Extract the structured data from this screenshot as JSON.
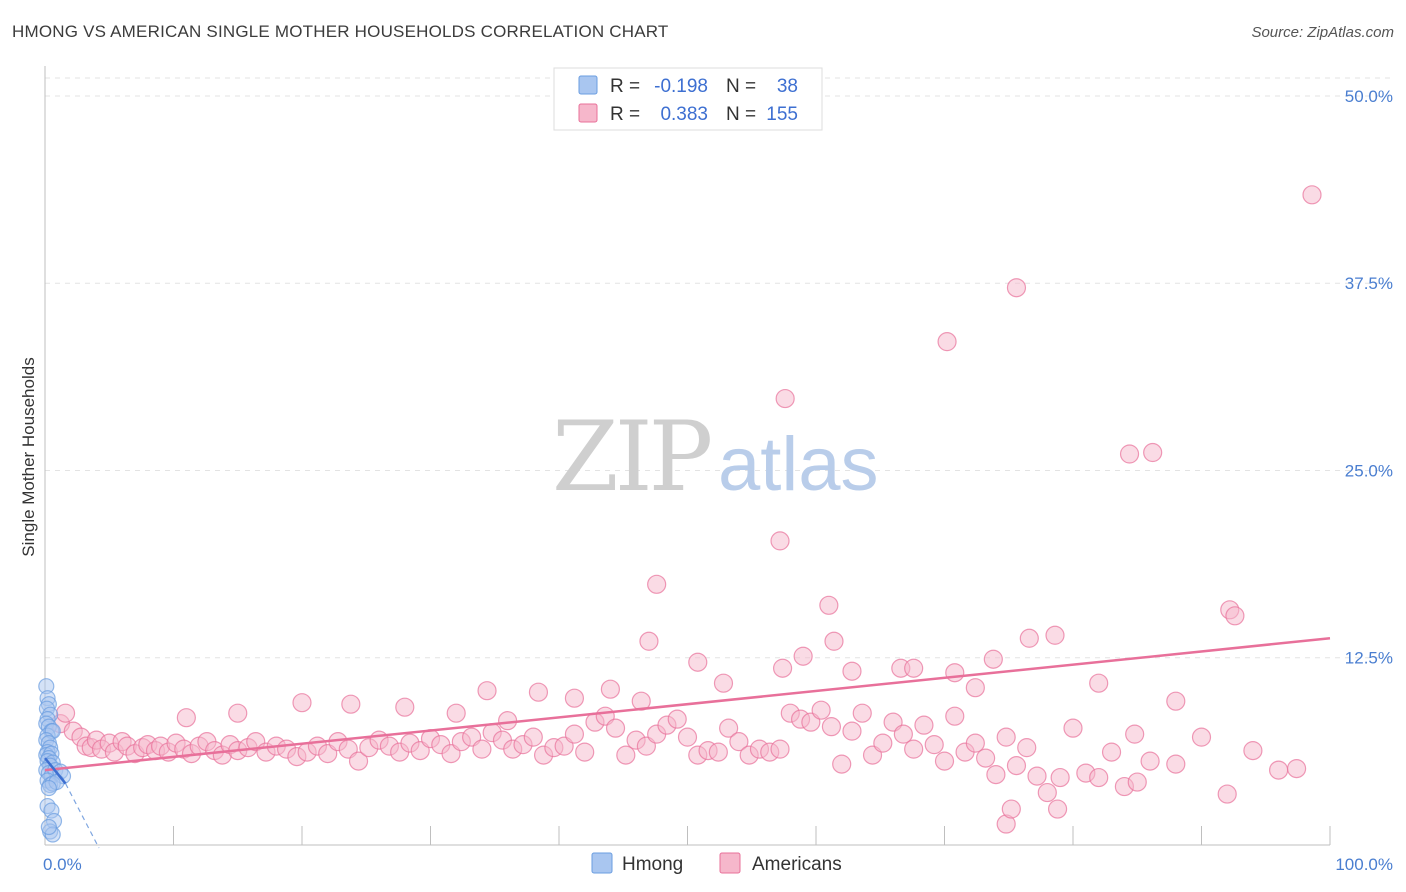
{
  "header": {
    "title": "HMONG VS AMERICAN SINGLE MOTHER HOUSEHOLDS CORRELATION CHART",
    "source": "Source: ZipAtlas.com"
  },
  "watermark": {
    "zip": "ZIP",
    "atlas": "atlas"
  },
  "chart_data": {
    "type": "scatter",
    "title": "HMONG VS AMERICAN SINGLE MOTHER HOUSEHOLDS CORRELATION CHART",
    "xlabel": "",
    "ylabel": "Single Mother Households",
    "xlim": [
      0,
      100
    ],
    "ylim": [
      0,
      52
    ],
    "x_ticks": {
      "min_label": "0.0%",
      "max_label": "100.0%"
    },
    "y_ticks": [
      {
        "value": 12.5,
        "label": "12.5%"
      },
      {
        "value": 25.0,
        "label": "25.0%"
      },
      {
        "value": 37.5,
        "label": "37.5%"
      },
      {
        "value": 50.0,
        "label": "50.0%"
      }
    ],
    "legend": {
      "position": "top-center",
      "rows": [
        {
          "r_label": "R =",
          "r_value": "-0.198",
          "n_label": "N =",
          "n_value": "38",
          "color": "#a9c6f0"
        },
        {
          "r_label": "R =",
          "r_value": "0.383",
          "n_label": "N =",
          "n_value": "155",
          "color": "#f6b7cb"
        }
      ]
    },
    "series": [
      {
        "name": "Hmong",
        "color": "#6a9de0",
        "fill": "#a9c6f0",
        "trend": {
          "x": [
            0.0,
            1.6
          ],
          "y": [
            5.8,
            4.1
          ],
          "dash_to": [
            4.2,
            -0.2
          ]
        },
        "points": [
          [
            0.1,
            10.6
          ],
          [
            0.2,
            9.8
          ],
          [
            0.3,
            9.4
          ],
          [
            0.15,
            9.1
          ],
          [
            0.4,
            8.7
          ],
          [
            0.2,
            8.4
          ],
          [
            0.1,
            8.1
          ],
          [
            0.3,
            7.9
          ],
          [
            0.5,
            7.6
          ],
          [
            0.2,
            7.3
          ],
          [
            0.6,
            7.6
          ],
          [
            0.1,
            7.0
          ],
          [
            0.3,
            6.8
          ],
          [
            0.4,
            6.5
          ],
          [
            0.2,
            6.2
          ],
          [
            0.1,
            6.0
          ],
          [
            0.5,
            6.1
          ],
          [
            0.3,
            5.8
          ],
          [
            0.2,
            5.6
          ],
          [
            0.6,
            5.5
          ],
          [
            0.4,
            5.3
          ],
          [
            0.1,
            5.0
          ],
          [
            0.3,
            4.8
          ],
          [
            0.5,
            4.6
          ],
          [
            0.8,
            5.0
          ],
          [
            1.2,
            4.9
          ],
          [
            1.4,
            4.6
          ],
          [
            0.2,
            4.3
          ],
          [
            0.4,
            4.0
          ],
          [
            0.6,
            4.1
          ],
          [
            0.9,
            4.2
          ],
          [
            0.3,
            3.8
          ],
          [
            0.2,
            2.6
          ],
          [
            0.5,
            2.3
          ],
          [
            0.7,
            1.6
          ],
          [
            0.4,
            0.9
          ],
          [
            0.6,
            0.7
          ],
          [
            0.3,
            1.2
          ]
        ]
      },
      {
        "name": "Americans",
        "color": "#e8709a",
        "fill": "#f6b7cb",
        "trend": {
          "x": [
            0.0,
            100.0
          ],
          "y": [
            5.0,
            13.8
          ]
        },
        "points": [
          [
            1.2,
            8.1
          ],
          [
            1.6,
            8.8
          ],
          [
            2.2,
            7.6
          ],
          [
            2.8,
            7.2
          ],
          [
            3.2,
            6.6
          ],
          [
            3.6,
            6.5
          ],
          [
            4.0,
            7.0
          ],
          [
            4.4,
            6.4
          ],
          [
            5.0,
            6.8
          ],
          [
            5.4,
            6.2
          ],
          [
            6.0,
            6.9
          ],
          [
            6.4,
            6.6
          ],
          [
            7.0,
            6.1
          ],
          [
            7.6,
            6.5
          ],
          [
            8.0,
            6.7
          ],
          [
            8.6,
            6.3
          ],
          [
            9.0,
            6.6
          ],
          [
            9.6,
            6.2
          ],
          [
            10.2,
            6.8
          ],
          [
            10.8,
            6.4
          ],
          [
            11.4,
            6.1
          ],
          [
            12.0,
            6.6
          ],
          [
            12.6,
            6.9
          ],
          [
            13.2,
            6.3
          ],
          [
            13.8,
            6.0
          ],
          [
            14.4,
            6.7
          ],
          [
            15.0,
            6.3
          ],
          [
            15.8,
            6.5
          ],
          [
            16.4,
            6.9
          ],
          [
            17.2,
            6.2
          ],
          [
            18.0,
            6.6
          ],
          [
            18.8,
            6.4
          ],
          [
            19.6,
            5.9
          ],
          [
            20.4,
            6.2
          ],
          [
            21.2,
            6.6
          ],
          [
            22.0,
            6.1
          ],
          [
            22.8,
            6.9
          ],
          [
            23.6,
            6.4
          ],
          [
            24.4,
            5.6
          ],
          [
            25.2,
            6.5
          ],
          [
            26.0,
            7.0
          ],
          [
            26.8,
            6.6
          ],
          [
            27.6,
            6.2
          ],
          [
            28.4,
            6.8
          ],
          [
            29.2,
            6.3
          ],
          [
            30.0,
            7.1
          ],
          [
            30.8,
            6.7
          ],
          [
            31.6,
            6.1
          ],
          [
            32.4,
            6.9
          ],
          [
            33.2,
            7.2
          ],
          [
            34.0,
            6.4
          ],
          [
            34.8,
            7.5
          ],
          [
            35.6,
            7.0
          ],
          [
            36.4,
            6.4
          ],
          [
            37.2,
            6.7
          ],
          [
            38.0,
            7.2
          ],
          [
            38.8,
            6.0
          ],
          [
            39.6,
            6.5
          ],
          [
            40.4,
            6.6
          ],
          [
            41.2,
            7.4
          ],
          [
            42.0,
            6.2
          ],
          [
            42.8,
            8.2
          ],
          [
            43.6,
            8.6
          ],
          [
            44.4,
            7.8
          ],
          [
            45.2,
            6.0
          ],
          [
            46.0,
            7.0
          ],
          [
            46.8,
            6.6
          ],
          [
            47.6,
            7.4
          ],
          [
            48.4,
            8.0
          ],
          [
            49.2,
            8.4
          ],
          [
            50.0,
            7.2
          ],
          [
            50.8,
            6.0
          ],
          [
            51.6,
            6.3
          ],
          [
            52.4,
            6.2
          ],
          [
            53.2,
            7.8
          ],
          [
            54.0,
            6.9
          ],
          [
            54.8,
            6.0
          ],
          [
            55.6,
            6.4
          ],
          [
            56.4,
            6.2
          ],
          [
            57.2,
            6.4
          ],
          [
            58.0,
            8.8
          ],
          [
            58.8,
            8.4
          ],
          [
            59.6,
            8.2
          ],
          [
            60.4,
            9.0
          ],
          [
            61.2,
            7.9
          ],
          [
            62.0,
            5.4
          ],
          [
            62.8,
            7.6
          ],
          [
            63.6,
            8.8
          ],
          [
            64.4,
            6.0
          ],
          [
            65.2,
            6.8
          ],
          [
            66.0,
            8.2
          ],
          [
            66.8,
            7.4
          ],
          [
            67.6,
            6.4
          ],
          [
            68.4,
            8.0
          ],
          [
            69.2,
            6.7
          ],
          [
            70.0,
            5.6
          ],
          [
            70.8,
            8.6
          ],
          [
            71.6,
            6.2
          ],
          [
            72.4,
            6.8
          ],
          [
            73.2,
            5.8
          ],
          [
            74.0,
            4.7
          ],
          [
            74.8,
            7.2
          ],
          [
            75.6,
            5.3
          ],
          [
            76.4,
            6.5
          ],
          [
            77.2,
            4.6
          ],
          [
            78.0,
            3.5
          ],
          [
            79.0,
            4.5
          ],
          [
            80.0,
            7.8
          ],
          [
            81.0,
            4.8
          ],
          [
            82.0,
            4.5
          ],
          [
            83.0,
            6.2
          ],
          [
            84.0,
            3.9
          ],
          [
            85.0,
            4.2
          ],
          [
            86.0,
            5.6
          ],
          [
            88.0,
            5.4
          ],
          [
            90.0,
            7.2
          ],
          [
            92.0,
            3.4
          ],
          [
            94.0,
            6.3
          ],
          [
            96.0,
            5.0
          ],
          [
            97.4,
            5.1
          ],
          [
            74.8,
            1.4
          ],
          [
            75.2,
            2.4
          ],
          [
            78.8,
            2.4
          ],
          [
            72.4,
            10.5
          ],
          [
            70.8,
            11.5
          ],
          [
            66.6,
            11.8
          ],
          [
            62.8,
            11.6
          ],
          [
            57.4,
            11.8
          ],
          [
            50.8,
            12.2
          ],
          [
            44.0,
            10.4
          ],
          [
            41.2,
            9.8
          ],
          [
            34.4,
            10.3
          ],
          [
            23.8,
            9.4
          ],
          [
            20.0,
            9.5
          ],
          [
            15.0,
            8.8
          ],
          [
            11.0,
            8.5
          ],
          [
            52.8,
            10.8
          ],
          [
            46.4,
            9.6
          ],
          [
            38.4,
            10.2
          ],
          [
            28.0,
            9.2
          ],
          [
            32.0,
            8.8
          ],
          [
            36.0,
            8.3
          ],
          [
            59.0,
            12.6
          ],
          [
            61.4,
            13.6
          ],
          [
            47.6,
            17.4
          ],
          [
            47.0,
            13.6
          ],
          [
            57.2,
            20.3
          ],
          [
            57.6,
            29.8
          ],
          [
            61.0,
            16.0
          ],
          [
            67.6,
            11.8
          ],
          [
            73.8,
            12.4
          ],
          [
            76.6,
            13.8
          ],
          [
            78.6,
            14.0
          ],
          [
            92.2,
            15.7
          ],
          [
            92.6,
            15.3
          ],
          [
            70.2,
            33.6
          ],
          [
            75.6,
            37.2
          ],
          [
            84.4,
            26.1
          ],
          [
            86.2,
            26.2
          ],
          [
            98.6,
            43.4
          ],
          [
            88.0,
            9.6
          ],
          [
            84.8,
            7.4
          ],
          [
            82.0,
            10.8
          ]
        ]
      }
    ],
    "bottom_legend": [
      "Hmong",
      "Americans"
    ]
  }
}
